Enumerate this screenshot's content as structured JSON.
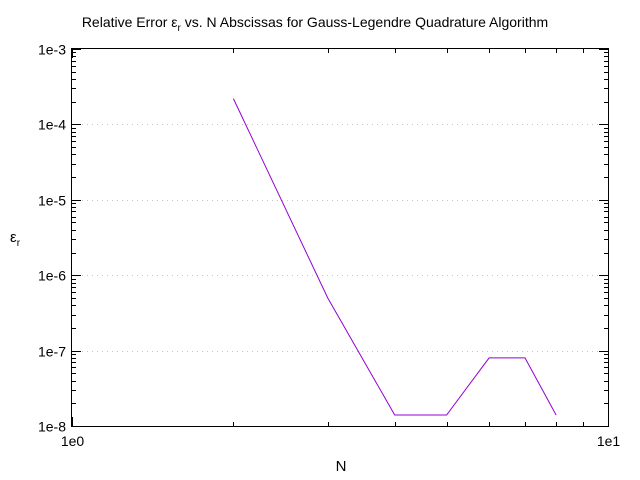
{
  "chart_data": {
    "type": "line",
    "title": "Relative Error",
    "title_symbol": "ε",
    "title_symbol_sub": "r",
    "title_rest": " vs. N Abscissas for Gauss-Legendre Quadrature Algorithm",
    "xlabel": "N",
    "ylabel_symbol": "ε",
    "ylabel_sub": "r",
    "x_scale": "log",
    "y_scale": "log",
    "xlim": [
      1,
      10
    ],
    "ylim": [
      1e-08,
      0.001
    ],
    "x_tick_values": [
      1,
      10
    ],
    "x_tick_labels": [
      "1e0",
      "1e1"
    ],
    "y_tick_values": [
      1e-08,
      1e-07,
      1e-06,
      1e-05,
      0.0001,
      0.001
    ],
    "y_tick_labels": [
      "1e-8",
      "1e-7",
      "1e-6",
      "1e-5",
      "1e-4",
      "1e-3"
    ],
    "grid": "horizontal dotted at major y ticks",
    "legend": "none",
    "series": [
      {
        "color": "#9400d3",
        "x": [
          2,
          3,
          4,
          5,
          6,
          7,
          8
        ],
        "y": [
          0.00022,
          5e-07,
          1.4e-08,
          1.4e-08,
          8e-08,
          8e-08,
          1.4e-08
        ]
      }
    ]
  }
}
